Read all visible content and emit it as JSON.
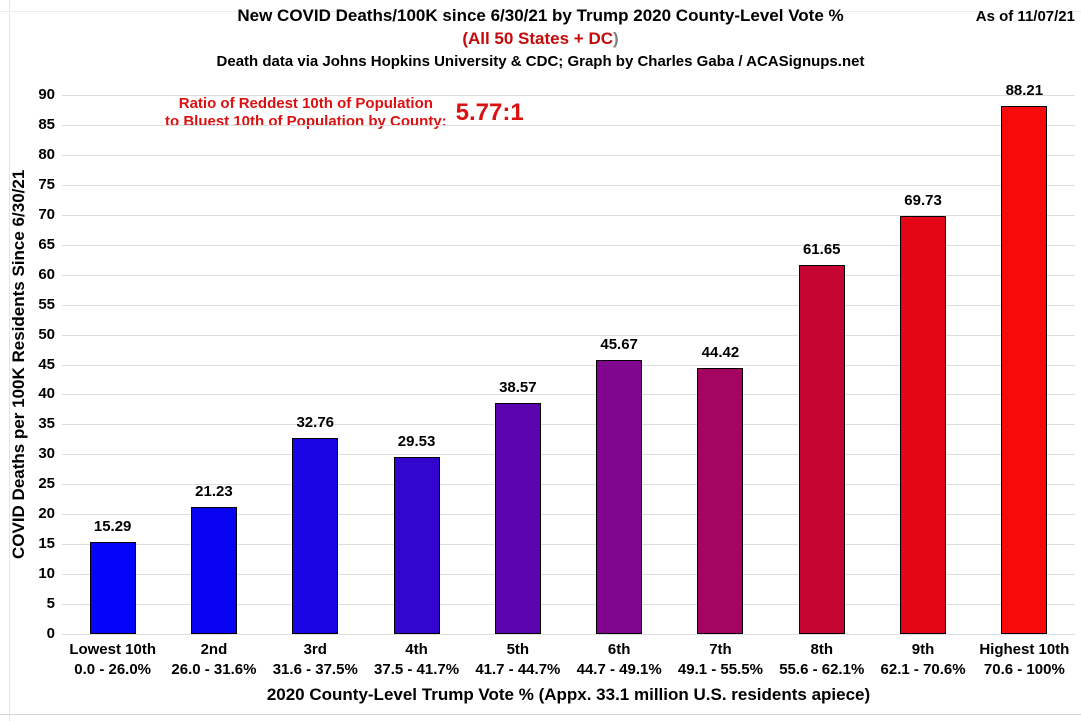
{
  "header": {
    "title": "New COVID Deaths/100K since 6/30/21 by Trump 2020 County-Level Vote %",
    "subtitle_red": "(All 50 States + DC",
    "subtitle_close_paren": ")",
    "credit": "Death data via Johns Hopkins University & CDC; Graph by Charles Gaba / ACASignups.net",
    "as_of": "As of 11/07/21"
  },
  "annotation": {
    "line1": "Ratio of Reddest 10th of Population",
    "line2": "to Bluest 10th of Population by County:",
    "ratio": "5.77:1",
    "color": "#db1111"
  },
  "chart_data": {
    "type": "bar",
    "title": "New COVID Deaths/100K since 6/30/21 by Trump 2020 County-Level Vote %",
    "subtitle": "(All 50 States + DC)",
    "categories": [
      "Lowest 10th",
      "2nd",
      "3rd",
      "4th",
      "5th",
      "6th",
      "7th",
      "8th",
      "9th",
      "Highest 10th"
    ],
    "category_ranges": [
      "0.0 - 26.0%",
      "26.0 - 31.6%",
      "31.6 - 37.5%",
      "37.5 - 41.7%",
      "41.7 - 44.7%",
      "44.7 - 49.1%",
      "49.1 - 55.5%",
      "55.6 - 62.1%",
      "62.1 - 70.6%",
      "70.6 - 100%"
    ],
    "values": [
      15.29,
      21.23,
      32.76,
      29.53,
      38.57,
      45.67,
      44.42,
      61.65,
      69.73,
      88.21
    ],
    "bar_colors": [
      "#0404fa",
      "#0804f2",
      "#1a06e4",
      "#3306cf",
      "#5c04ae",
      "#800690",
      "#a30560",
      "#c70532",
      "#e40615",
      "#f70a0a"
    ],
    "xlabel": "2020 County-Level Trump Vote % (Appx. 33.1 million U.S. residents apiece)",
    "ylabel": "COVID Deaths per 100K Residents Since 6/30/21",
    "ylim": [
      0,
      90
    ],
    "ytick_step": 5,
    "grid": "horizontal",
    "legend": "none",
    "value_labels_decimals": 2,
    "annotation_ratio": "5.77:1"
  }
}
